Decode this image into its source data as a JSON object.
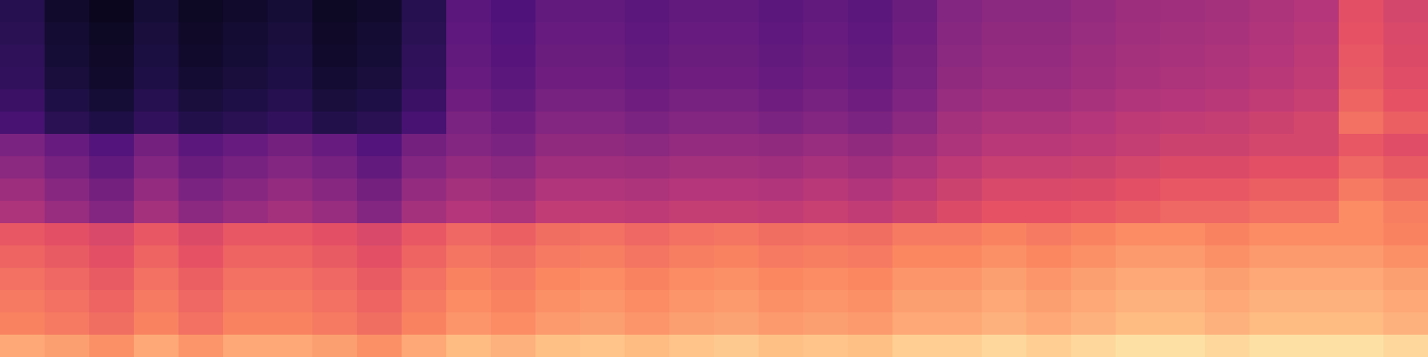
{
  "chart_data": {
    "type": "heatmap",
    "tick_labels": false,
    "grid": false,
    "color": "magma",
    "zlim": [
      0,
      100
    ],
    "cells": [
      [
        15,
        8,
        5,
        10,
        6,
        8,
        10,
        6,
        8,
        15,
        28,
        25,
        30,
        30,
        28,
        30,
        30,
        28,
        30,
        28,
        32,
        38,
        40,
        40,
        42,
        44,
        45,
        46,
        48,
        50,
        62,
        58
      ],
      [
        16,
        9,
        6,
        11,
        7,
        9,
        11,
        7,
        9,
        16,
        29,
        26,
        31,
        31,
        29,
        31,
        31,
        29,
        31,
        29,
        33,
        39,
        41,
        41,
        43,
        45,
        46,
        47,
        49,
        51,
        63,
        59
      ],
      [
        17,
        10,
        7,
        12,
        8,
        10,
        12,
        8,
        10,
        17,
        30,
        27,
        32,
        32,
        30,
        32,
        32,
        30,
        32,
        30,
        34,
        40,
        42,
        42,
        44,
        46,
        47,
        48,
        50,
        52,
        64,
        60
      ],
      [
        18,
        11,
        8,
        13,
        9,
        11,
        13,
        9,
        11,
        18,
        31,
        28,
        33,
        33,
        31,
        33,
        33,
        31,
        33,
        31,
        35,
        41,
        43,
        43,
        45,
        47,
        48,
        49,
        51,
        53,
        65,
        61
      ],
      [
        20,
        13,
        10,
        15,
        11,
        13,
        15,
        11,
        13,
        20,
        33,
        30,
        35,
        35,
        33,
        35,
        35,
        33,
        35,
        33,
        37,
        43,
        45,
        45,
        47,
        49,
        50,
        51,
        53,
        55,
        67,
        63
      ],
      [
        23,
        16,
        13,
        18,
        14,
        16,
        18,
        14,
        16,
        23,
        36,
        33,
        38,
        38,
        36,
        38,
        38,
        36,
        38,
        36,
        40,
        46,
        48,
        48,
        50,
        52,
        53,
        54,
        56,
        58,
        70,
        66
      ],
      [
        36,
        31,
        26,
        34,
        28,
        31,
        34,
        31,
        26,
        34,
        38,
        36,
        41,
        41,
        40,
        42,
        42,
        41,
        43,
        41,
        44,
        48,
        51,
        51,
        52,
        54,
        56,
        56,
        58,
        58,
        64,
        61
      ],
      [
        40,
        35,
        30,
        38,
        32,
        35,
        38,
        35,
        30,
        38,
        42,
        40,
        45,
        45,
        44,
        46,
        46,
        45,
        47,
        45,
        48,
        52,
        55,
        55,
        56,
        58,
        60,
        60,
        62,
        62,
        68,
        65
      ],
      [
        44,
        39,
        34,
        42,
        36,
        39,
        42,
        39,
        34,
        42,
        46,
        44,
        49,
        49,
        48,
        50,
        50,
        49,
        51,
        49,
        52,
        56,
        59,
        59,
        60,
        62,
        64,
        64,
        66,
        66,
        72,
        69
      ],
      [
        48,
        43,
        38,
        46,
        40,
        43,
        46,
        43,
        38,
        46,
        50,
        48,
        53,
        53,
        52,
        54,
        54,
        53,
        55,
        53,
        56,
        60,
        63,
        63,
        64,
        66,
        68,
        68,
        70,
        70,
        76,
        73
      ],
      [
        64,
        62,
        59,
        64,
        60,
        64,
        64,
        62,
        59,
        64,
        68,
        66,
        69,
        70,
        68,
        70,
        71,
        69,
        70,
        69,
        72,
        72,
        74,
        72,
        74,
        76,
        76,
        74,
        76,
        76,
        76,
        74
      ],
      [
        67,
        65,
        62,
        67,
        63,
        67,
        67,
        65,
        62,
        67,
        71,
        69,
        72,
        73,
        71,
        73,
        74,
        72,
        73,
        72,
        75,
        75,
        77,
        75,
        77,
        79,
        79,
        77,
        79,
        79,
        79,
        77
      ],
      [
        70,
        68,
        65,
        70,
        66,
        70,
        70,
        68,
        65,
        70,
        74,
        72,
        75,
        76,
        74,
        76,
        77,
        75,
        76,
        75,
        78,
        78,
        80,
        78,
        80,
        82,
        82,
        80,
        82,
        82,
        82,
        80
      ],
      [
        72,
        70,
        67,
        72,
        68,
        72,
        72,
        70,
        67,
        72,
        76,
        74,
        77,
        78,
        76,
        78,
        79,
        77,
        78,
        77,
        80,
        80,
        82,
        80,
        82,
        84,
        84,
        82,
        84,
        84,
        84,
        82
      ],
      [
        74,
        72,
        69,
        74,
        70,
        74,
        74,
        72,
        69,
        74,
        78,
        76,
        79,
        80,
        78,
        80,
        81,
        79,
        80,
        79,
        82,
        82,
        84,
        82,
        84,
        86,
        86,
        84,
        86,
        86,
        86,
        84
      ],
      [
        82,
        80,
        77,
        82,
        78,
        82,
        82,
        80,
        77,
        82,
        86,
        84,
        87,
        88,
        86,
        88,
        89,
        87,
        88,
        87,
        90,
        90,
        92,
        90,
        92,
        94,
        94,
        92,
        94,
        94,
        94,
        92
      ]
    ]
  }
}
